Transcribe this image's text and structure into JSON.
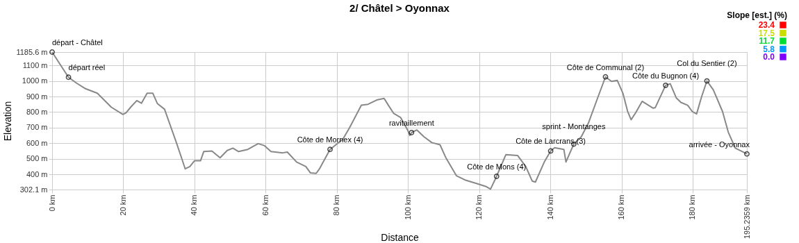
{
  "chart_data": {
    "type": "line",
    "title": "2/ Châtel > Oyonnax",
    "xlabel": "Distance",
    "ylabel": "Elevation",
    "clabel": "Slope [est.] (%)",
    "clim": [
      0,
      23.4
    ],
    "cticks": [
      {
        "value": 0,
        "label": "0.0"
      },
      5.8,
      11.7,
      17.5,
      23.4
    ],
    "xlim": [
      0,
      195.2359
    ],
    "xticks": [
      {
        "value": 0,
        "label": "0 km"
      },
      {
        "value": 20,
        "label": "20 km"
      },
      {
        "value": 40,
        "label": "40 km"
      },
      {
        "value": 60,
        "label": "60 km"
      },
      {
        "value": 80,
        "label": "80 km"
      },
      {
        "value": 100,
        "label": "100 km"
      },
      {
        "value": 120,
        "label": "120 km"
      },
      {
        "value": 140,
        "label": "140 km"
      },
      {
        "value": 160,
        "label": "160 km"
      },
      {
        "value": 180,
        "label": "180 km"
      },
      {
        "value": 195.2359,
        "label": "195.2359 km"
      }
    ],
    "ylim": [
      302.1,
      1185.6
    ],
    "yticks": [
      {
        "value": 302.1,
        "label": "302.1 m"
      },
      {
        "value": 400,
        "label": "400 m"
      },
      {
        "value": 500,
        "label": "500 m"
      },
      {
        "value": 600,
        "label": "600 m"
      },
      {
        "value": 700,
        "label": "700 m"
      },
      {
        "value": 800,
        "label": "800 m"
      },
      {
        "value": 900,
        "label": "900 m"
      },
      {
        "value": 1000,
        "label": "1000 m"
      },
      {
        "value": 1100,
        "label": "1100 m"
      },
      {
        "value": 1185.6,
        "label": "1185.6 m"
      }
    ],
    "grid": true,
    "marker": "none",
    "line_style": "solid",
    "series": [
      {
        "color": "#888888",
        "x": [
          0,
          4.6,
          6.8,
          9.4,
          12.7,
          15.0,
          16.6,
          19.9,
          20.8,
          22.1,
          23.8,
          25.1,
          26.7,
          28.3,
          29.6,
          31.6,
          33.2,
          34.8,
          36.1,
          37.4,
          38.7,
          40.0,
          41.7,
          42.6,
          44.9,
          47.2,
          49.2,
          50.8,
          52.4,
          55.0,
          57.9,
          59.6,
          61.5,
          64.8,
          66.1,
          68.7,
          71.3,
          72.6,
          74.2,
          75.2,
          78.1,
          81.7,
          83.6,
          86.9,
          88.8,
          91.4,
          93.3,
          94.4,
          96.0,
          97.9,
          99.9,
          100.5,
          101.0,
          102.5,
          104.5,
          106.7,
          109.0,
          110.6,
          113.6,
          116.2,
          119.4,
          122.0,
          123.2,
          124.9,
          127.5,
          130.8,
          133.1,
          134.9,
          135.8,
          138.3,
          140.1,
          141.2,
          143.8,
          144.4,
          145.5,
          146.6,
          148.7,
          150.7,
          153.3,
          155.5,
          157.2,
          158.8,
          160.4,
          161.7,
          162.7,
          164.0,
          165.8,
          168.9,
          169.5,
          172.4,
          173.7,
          175.4,
          176.7,
          178.6,
          179.9,
          181.1,
          182.5,
          184.0,
          185.8,
          188.4,
          190.0,
          192.0,
          195.2359
        ],
        "values": [
          1185.6,
          1024,
          987,
          950,
          921,
          869,
          832,
          785,
          796,
          832,
          874,
          857,
          921,
          921,
          854,
          818,
          715,
          612,
          524,
          435,
          450,
          487,
          487,
          546,
          550,
          506,
          553,
          568,
          546,
          560,
          597,
          585,
          546,
          538,
          543,
          479,
          450,
          409,
          406,
          438,
          560,
          626,
          700,
          844,
          850,
          879,
          888,
          847,
          791,
          766,
          685,
          649,
          668,
          685,
          641,
          604,
          590,
          509,
          391,
          362,
          340,
          321,
          305,
          387,
          526,
          521,
          450,
          357,
          350,
          479,
          550,
          571,
          560,
          479,
          538,
          594,
          641,
          729,
          891,
          1026,
          997,
          1004,
          921,
          806,
          751,
          796,
          869,
          825,
          829,
          972,
          982,
          891,
          862,
          844,
          803,
          788,
          898,
          1000,
          943,
          803,
          671,
          568,
          531
        ]
      }
    ],
    "annotations": [
      {
        "text": "départ - Châtel",
        "x": 0,
        "y": 1185.6
      },
      {
        "text": "départ réel",
        "x": 4.6,
        "y": 1024
      },
      {
        "text": "Côte de Mornex (4)",
        "x": 78.1,
        "y": 560
      },
      {
        "text": "ravitaillement",
        "x": 101.0,
        "y": 668
      },
      {
        "text": "Côte de Mons (4)",
        "x": 124.9,
        "y": 387
      },
      {
        "text": "Côte de Larcrans (3)",
        "x": 140.1,
        "y": 550
      },
      {
        "text": "sprint - Montanges",
        "x": 146.6,
        "y": 594
      },
      {
        "text": "Côte de Communal (2)",
        "x": 155.5,
        "y": 1026
      },
      {
        "text": "Côte du Bugnon (4)",
        "x": 172.4,
        "y": 972
      },
      {
        "text": "Col du Sentier (2)",
        "x": 184.0,
        "y": 1000
      },
      {
        "text": "arrivée - Oyonnax",
        "x": 195.2359,
        "y": 531
      }
    ]
  }
}
